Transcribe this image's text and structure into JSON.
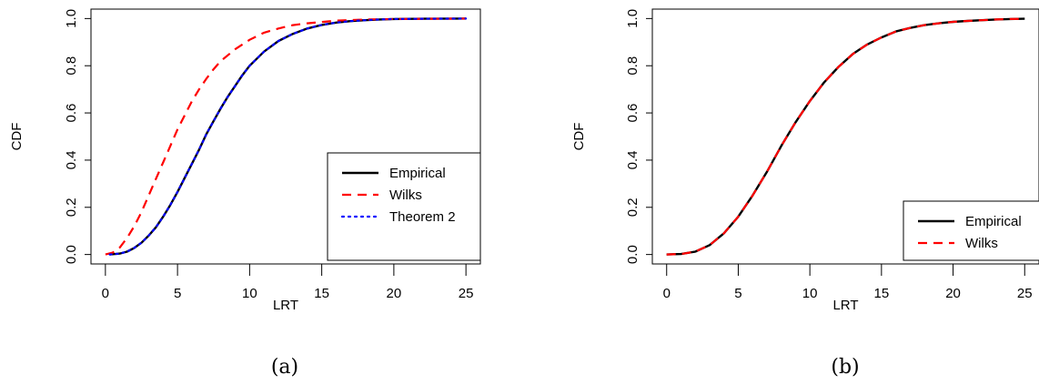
{
  "chart_data": [
    {
      "type": "line",
      "caption": "(a)",
      "xlabel": "LRT",
      "ylabel": "CDF",
      "xlim": [
        0,
        25
      ],
      "ylim": [
        0,
        1
      ],
      "xticks": [
        0,
        5,
        10,
        15,
        20,
        25
      ],
      "yticks": [
        0.0,
        0.2,
        0.4,
        0.6,
        0.8,
        1.0
      ],
      "xtick_labels": [
        "0",
        "5",
        "10",
        "15",
        "20",
        "25"
      ],
      "ytick_labels": [
        "0.0",
        "0.2",
        "0.4",
        "0.6",
        "0.8",
        "1.0"
      ],
      "grid": false,
      "legend_position": "bottom-right",
      "series": [
        {
          "name": "Empirical",
          "color": "#000000",
          "style": "solid",
          "x": [
            0.3,
            1,
            1.5,
            2,
            2.5,
            3,
            3.5,
            4,
            4.5,
            5,
            5.5,
            6,
            6.5,
            7,
            7.5,
            8,
            8.5,
            9,
            9.5,
            10,
            11,
            12,
            13,
            14,
            15,
            16,
            17,
            18,
            19,
            20,
            22,
            25
          ],
          "y": [
            0.0,
            0.004,
            0.012,
            0.028,
            0.05,
            0.08,
            0.115,
            0.16,
            0.21,
            0.265,
            0.325,
            0.385,
            0.445,
            0.51,
            0.565,
            0.62,
            0.67,
            0.715,
            0.76,
            0.8,
            0.86,
            0.905,
            0.935,
            0.958,
            0.973,
            0.983,
            0.989,
            0.993,
            0.996,
            0.998,
            0.999,
            1.0
          ]
        },
        {
          "name": "Wilks",
          "color": "#ff0000",
          "style": "dashed",
          "x": [
            0,
            0.5,
            1,
            1.5,
            2,
            2.5,
            3,
            3.5,
            4,
            4.5,
            5,
            5.5,
            6,
            6.5,
            7,
            7.5,
            8,
            9,
            10,
            11,
            12,
            13,
            14,
            16,
            18,
            20,
            25
          ],
          "y": [
            0.0,
            0.008,
            0.03,
            0.07,
            0.12,
            0.18,
            0.25,
            0.32,
            0.39,
            0.46,
            0.53,
            0.59,
            0.65,
            0.7,
            0.745,
            0.785,
            0.82,
            0.87,
            0.91,
            0.94,
            0.958,
            0.972,
            0.98,
            0.991,
            0.996,
            0.998,
            1.0
          ]
        },
        {
          "name": "Theorem 2",
          "color": "#0000ff",
          "style": "dotted",
          "x": [
            0.3,
            1,
            1.5,
            2,
            2.5,
            3,
            3.5,
            4,
            4.5,
            5,
            5.5,
            6,
            6.5,
            7,
            7.5,
            8,
            8.5,
            9,
            9.5,
            10,
            11,
            12,
            13,
            14,
            15,
            16,
            17,
            18,
            19,
            20,
            22,
            25
          ],
          "y": [
            0.0,
            0.004,
            0.012,
            0.028,
            0.05,
            0.08,
            0.115,
            0.16,
            0.21,
            0.265,
            0.325,
            0.385,
            0.445,
            0.51,
            0.565,
            0.62,
            0.67,
            0.715,
            0.76,
            0.8,
            0.86,
            0.905,
            0.935,
            0.958,
            0.973,
            0.983,
            0.989,
            0.993,
            0.996,
            0.998,
            0.999,
            1.0
          ]
        }
      ]
    },
    {
      "type": "line",
      "caption": "(b)",
      "xlabel": "LRT",
      "ylabel": "CDF",
      "xlim": [
        0,
        25
      ],
      "ylim": [
        0,
        1
      ],
      "xticks": [
        0,
        5,
        10,
        15,
        20,
        25
      ],
      "yticks": [
        0.0,
        0.2,
        0.4,
        0.6,
        0.8,
        1.0
      ],
      "xtick_labels": [
        "0",
        "5",
        "10",
        "15",
        "20",
        "25"
      ],
      "ytick_labels": [
        "0.0",
        "0.2",
        "0.4",
        "0.6",
        "0.8",
        "1.0"
      ],
      "grid": false,
      "legend_position": "bottom-right",
      "series": [
        {
          "name": "Empirical",
          "color": "#000000",
          "style": "solid",
          "x": [
            0,
            1,
            2,
            3,
            4,
            5,
            6,
            7,
            8,
            9,
            10,
            11,
            12,
            13,
            14,
            15,
            16,
            17,
            18,
            19,
            20,
            21,
            22,
            23,
            24,
            25
          ],
          "y": [
            0.0,
            0.002,
            0.012,
            0.04,
            0.09,
            0.16,
            0.25,
            0.35,
            0.46,
            0.56,
            0.65,
            0.73,
            0.795,
            0.85,
            0.89,
            0.92,
            0.945,
            0.96,
            0.972,
            0.98,
            0.986,
            0.99,
            0.993,
            0.996,
            0.998,
            0.999
          ]
        },
        {
          "name": "Wilks",
          "color": "#ff0000",
          "style": "dashed",
          "x": [
            0,
            1,
            2,
            3,
            4,
            5,
            6,
            7,
            8,
            9,
            10,
            11,
            12,
            13,
            14,
            15,
            16,
            17,
            18,
            19,
            20,
            21,
            22,
            23,
            24,
            25
          ],
          "y": [
            0.0,
            0.002,
            0.012,
            0.04,
            0.09,
            0.16,
            0.25,
            0.35,
            0.46,
            0.56,
            0.65,
            0.73,
            0.795,
            0.85,
            0.89,
            0.92,
            0.945,
            0.96,
            0.972,
            0.98,
            0.986,
            0.99,
            0.993,
            0.996,
            0.998,
            0.999
          ]
        }
      ]
    }
  ]
}
